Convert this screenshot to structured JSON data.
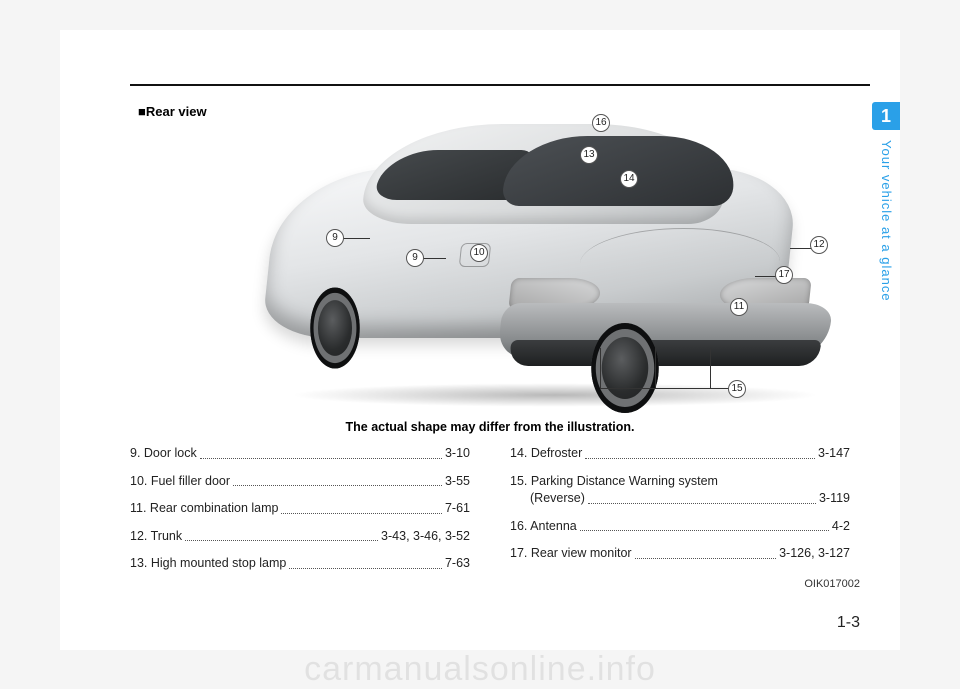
{
  "chapter_tab": "1",
  "section_title": "Your vehicle at a glance",
  "figure_label": "■Rear view",
  "figure_caption": "The actual shape may differ from the illustration.",
  "figure_code": "OIK017002",
  "page_number": "1-3",
  "watermark": "carmanualsonline.info",
  "callouts": {
    "9": "9",
    "9b": "9",
    "10": "10",
    "11": "11",
    "12": "12",
    "13": "13",
    "14": "14",
    "15": "15",
    "16": "16",
    "17": "17"
  },
  "items_left": [
    {
      "id": "door-lock",
      "label": "9. Door lock",
      "ref": "3-10"
    },
    {
      "id": "fuel-filler-door",
      "label": "10. Fuel filler door",
      "ref": "3-55"
    },
    {
      "id": "rear-combo-lamp",
      "label": "11. Rear combination lamp",
      "ref": "7-61"
    },
    {
      "id": "trunk",
      "label": "12. Trunk",
      "ref": "3-43, 3-46, 3-52"
    },
    {
      "id": "high-stop-lamp",
      "label": "13. High mounted stop lamp",
      "ref": "7-63"
    }
  ],
  "items_right": [
    {
      "id": "defroster",
      "label": "14. Defroster",
      "ref": "3-147"
    },
    {
      "id": "pdw",
      "label1": "15. Parking Distance Warning system",
      "label2": "(Reverse)",
      "ref": "3-119",
      "wrap": true
    },
    {
      "id": "antenna",
      "label": "16. Antenna",
      "ref": "4-2"
    },
    {
      "id": "rear-view-monitor",
      "label": "17. Rear view monitor",
      "ref": "3-126, 3-127"
    }
  ]
}
